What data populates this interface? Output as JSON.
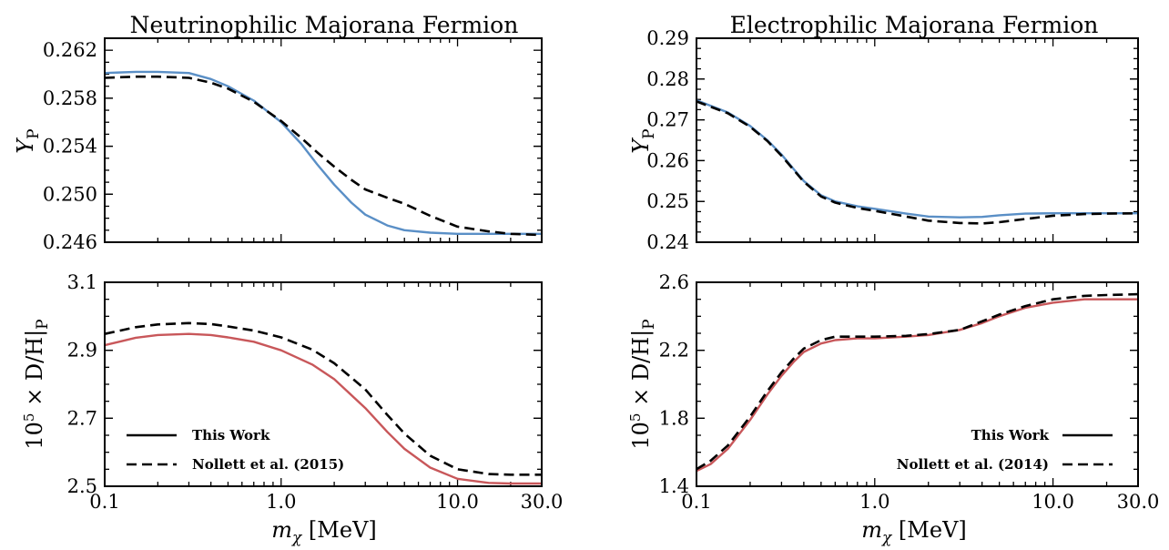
{
  "colors": {
    "this_work_yp": "#5a8fc6",
    "this_work_dh": "#c8575a",
    "reference": "#000000"
  },
  "chart_data": [
    {
      "id": "nu_yp",
      "type": "line",
      "title": "Neutrinophilic Majorana Fermion",
      "ylabel": "Y",
      "ylabel_sub": "P",
      "xscale": "log",
      "xlim": [
        0.1,
        30.0
      ],
      "ylim": [
        0.246,
        0.263
      ],
      "yticks": [
        0.262,
        0.258,
        0.254,
        0.25,
        0.246
      ],
      "ytick_labels": [
        "0.262",
        "0.258",
        "0.254",
        "0.250",
        "0.246"
      ],
      "series": [
        {
          "style": "solid",
          "color": "#5a8fc6",
          "x": [
            0.1,
            0.15,
            0.2,
            0.3,
            0.4,
            0.5,
            0.7,
            1.0,
            1.3,
            1.6,
            2.0,
            2.5,
            3.0,
            4.0,
            5.0,
            7.0,
            10.0,
            15.0,
            20.0,
            30.0
          ],
          "y": [
            0.2601,
            0.2602,
            0.2602,
            0.2601,
            0.2596,
            0.259,
            0.2578,
            0.256,
            0.2542,
            0.2525,
            0.2508,
            0.2493,
            0.2483,
            0.2474,
            0.247,
            0.2468,
            0.2467,
            0.2467,
            0.2467,
            0.2467
          ]
        },
        {
          "style": "dashed",
          "color": "#000000",
          "x": [
            0.1,
            0.15,
            0.2,
            0.3,
            0.4,
            0.5,
            0.7,
            1.0,
            1.3,
            1.6,
            2.0,
            2.5,
            3.0,
            4.0,
            5.0,
            7.0,
            10.0,
            15.0,
            20.0,
            30.0
          ],
          "y": [
            0.2597,
            0.2598,
            0.2598,
            0.2597,
            0.2593,
            0.2588,
            0.2577,
            0.2561,
            0.2547,
            0.2535,
            0.2523,
            0.2512,
            0.2504,
            0.2497,
            0.2492,
            0.2482,
            0.2473,
            0.2469,
            0.2467,
            0.2466
          ]
        }
      ]
    },
    {
      "id": "e_yp",
      "type": "line",
      "title": "Electrophilic Majorana Fermion",
      "ylabel": "Y",
      "ylabel_sub": "P",
      "xscale": "log",
      "xlim": [
        0.1,
        30.0
      ],
      "ylim": [
        0.24,
        0.29
      ],
      "yticks": [
        0.29,
        0.28,
        0.27,
        0.26,
        0.25,
        0.24
      ],
      "ytick_labels": [
        "0.29",
        "0.28",
        "0.27",
        "0.26",
        "0.25",
        "0.24"
      ],
      "series": [
        {
          "style": "solid",
          "color": "#5a8fc6",
          "x": [
            0.1,
            0.15,
            0.2,
            0.25,
            0.3,
            0.35,
            0.4,
            0.5,
            0.6,
            0.8,
            1.0,
            1.5,
            2.0,
            3.0,
            4.0,
            5.0,
            7.0,
            10.0,
            15.0,
            20.0,
            30.0
          ],
          "y": [
            0.2748,
            0.2718,
            0.2685,
            0.265,
            0.2615,
            0.258,
            0.255,
            0.2515,
            0.25,
            0.2488,
            0.2482,
            0.247,
            0.2463,
            0.2461,
            0.2462,
            0.2466,
            0.247,
            0.2471,
            0.2471,
            0.2471,
            0.2471
          ]
        },
        {
          "style": "dashed",
          "color": "#000000",
          "x": [
            0.1,
            0.15,
            0.2,
            0.25,
            0.3,
            0.35,
            0.4,
            0.5,
            0.6,
            0.8,
            1.0,
            1.5,
            2.0,
            3.0,
            4.0,
            5.0,
            7.0,
            10.0,
            15.0,
            20.0,
            30.0
          ],
          "y": [
            0.2745,
            0.2716,
            0.2683,
            0.2648,
            0.2612,
            0.2578,
            0.2548,
            0.2512,
            0.2497,
            0.2484,
            0.2477,
            0.2463,
            0.2453,
            0.2447,
            0.2446,
            0.2449,
            0.2457,
            0.2465,
            0.2469,
            0.247,
            0.2471
          ]
        }
      ]
    },
    {
      "id": "nu_dh",
      "type": "line",
      "ylabel": "10",
      "ylabel_sup": "5",
      "ylabel_rest": " × D/H|",
      "ylabel_sub": "P",
      "xlabel": "m",
      "xlabel_sub": "χ",
      "xlabel_rest": " [MeV]",
      "xscale": "log",
      "xlim": [
        0.1,
        30.0
      ],
      "ylim": [
        2.5,
        3.1
      ],
      "xticks": [
        0.1,
        1.0,
        10.0,
        30.0
      ],
      "xtick_labels": [
        "0.1",
        "1.0",
        "10.0",
        "30.0"
      ],
      "yticks": [
        3.1,
        2.9,
        2.7,
        2.5
      ],
      "ytick_labels": [
        "3.1",
        "2.9",
        "2.7",
        "2.5"
      ],
      "legend": {
        "position": "lower-left",
        "entries": [
          {
            "label": "This Work",
            "style": "solid"
          },
          {
            "label": "Nollett et al. (2015)",
            "style": "dashed"
          }
        ]
      },
      "series": [
        {
          "name": "This Work",
          "style": "solid",
          "color": "#c8575a",
          "x": [
            0.1,
            0.15,
            0.2,
            0.3,
            0.4,
            0.5,
            0.7,
            1.0,
            1.5,
            2.0,
            3.0,
            4.0,
            5.0,
            7.0,
            10.0,
            15.0,
            20.0,
            30.0
          ],
          "y": [
            2.915,
            2.937,
            2.945,
            2.948,
            2.945,
            2.938,
            2.925,
            2.9,
            2.858,
            2.815,
            2.73,
            2.66,
            2.61,
            2.555,
            2.522,
            2.51,
            2.508,
            2.508
          ]
        },
        {
          "name": "Nollett et al. (2015)",
          "style": "dashed",
          "color": "#000000",
          "x": [
            0.1,
            0.15,
            0.2,
            0.3,
            0.4,
            0.5,
            0.7,
            1.0,
            1.5,
            2.0,
            3.0,
            4.0,
            5.0,
            7.0,
            10.0,
            15.0,
            20.0,
            30.0
          ],
          "y": [
            2.948,
            2.968,
            2.976,
            2.98,
            2.977,
            2.97,
            2.958,
            2.938,
            2.902,
            2.862,
            2.785,
            2.71,
            2.655,
            2.59,
            2.55,
            2.536,
            2.534,
            2.534
          ]
        }
      ]
    },
    {
      "id": "e_dh",
      "type": "line",
      "ylabel": "10",
      "ylabel_sup": "5",
      "ylabel_rest": " × D/H|",
      "ylabel_sub": "P",
      "xlabel": "m",
      "xlabel_sub": "χ",
      "xlabel_rest": " [MeV]",
      "xscale": "log",
      "xlim": [
        0.1,
        30.0
      ],
      "ylim": [
        1.4,
        2.6
      ],
      "xticks": [
        0.1,
        1.0,
        10.0,
        30.0
      ],
      "xtick_labels": [
        "0.1",
        "1.0",
        "10.0",
        "30.0"
      ],
      "yticks": [
        2.6,
        2.2,
        1.8,
        1.4
      ],
      "ytick_labels": [
        "2.6",
        "2.2",
        "1.8",
        "1.4"
      ],
      "legend": {
        "position": "lower-right",
        "entries": [
          {
            "label": "This Work",
            "style": "solid"
          },
          {
            "label": "Nollett et al. (2014)",
            "style": "dashed"
          }
        ]
      },
      "series": [
        {
          "name": "This Work",
          "style": "solid",
          "color": "#c8575a",
          "x": [
            0.1,
            0.12,
            0.15,
            0.2,
            0.25,
            0.3,
            0.35,
            0.4,
            0.5,
            0.6,
            0.8,
            1.0,
            1.5,
            2.0,
            3.0,
            4.0,
            5.0,
            7.0,
            10.0,
            15.0,
            20.0,
            30.0
          ],
          "y": [
            1.49,
            1.53,
            1.62,
            1.79,
            1.94,
            2.05,
            2.13,
            2.19,
            2.24,
            2.26,
            2.27,
            2.27,
            2.28,
            2.29,
            2.32,
            2.36,
            2.4,
            2.45,
            2.48,
            2.5,
            2.5,
            2.5
          ]
        },
        {
          "name": "Nollett et al. (2014)",
          "style": "dashed",
          "color": "#000000",
          "x": [
            0.1,
            0.12,
            0.15,
            0.2,
            0.25,
            0.3,
            0.35,
            0.4,
            0.5,
            0.6,
            0.8,
            1.0,
            1.5,
            2.0,
            3.0,
            4.0,
            5.0,
            7.0,
            10.0,
            15.0,
            20.0,
            30.0
          ],
          "y": [
            1.5,
            1.55,
            1.64,
            1.81,
            1.96,
            2.07,
            2.15,
            2.21,
            2.26,
            2.28,
            2.28,
            2.28,
            2.285,
            2.295,
            2.32,
            2.37,
            2.41,
            2.46,
            2.5,
            2.52,
            2.525,
            2.53
          ]
        }
      ]
    }
  ]
}
